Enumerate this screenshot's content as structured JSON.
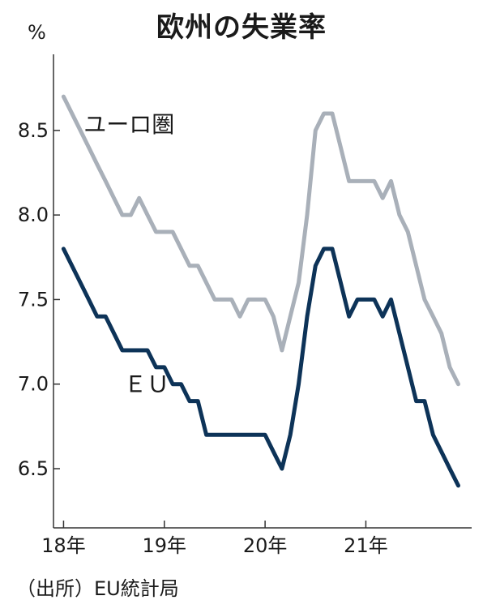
{
  "chart_data": {
    "type": "line",
    "title": "欧州の失業率",
    "ylabel": "%",
    "source": "（出所）EU統計局",
    "ylim": [
      6.15,
      8.95
    ],
    "yticks": [
      6.5,
      7.0,
      7.5,
      8.0,
      8.5
    ],
    "ytick_labels": [
      "6.5",
      "7.0",
      "7.5",
      "8.0",
      "8.5"
    ],
    "xlim": [
      2017.9,
      2022.05
    ],
    "xticks": [
      2018,
      2019,
      2020,
      2021
    ],
    "xtick_labels": [
      "18年",
      "19年",
      "20年",
      "21年"
    ],
    "grid": false,
    "legend": "inline labels",
    "series": [
      {
        "name": "ユーロ圏",
        "color": "#a9b0b9",
        "x": [
          2018.0,
          2018.083,
          2018.167,
          2018.25,
          2018.333,
          2018.417,
          2018.5,
          2018.583,
          2018.667,
          2018.75,
          2018.833,
          2018.917,
          2019.0,
          2019.083,
          2019.167,
          2019.25,
          2019.333,
          2019.417,
          2019.5,
          2019.583,
          2019.667,
          2019.75,
          2019.833,
          2019.917,
          2020.0,
          2020.083,
          2020.167,
          2020.25,
          2020.333,
          2020.417,
          2020.5,
          2020.583,
          2020.667,
          2020.75,
          2020.833,
          2020.917,
          2021.0,
          2021.083,
          2021.167,
          2021.25,
          2021.333,
          2021.417,
          2021.5,
          2021.583,
          2021.667,
          2021.75,
          2021.833,
          2021.917
        ],
        "values": [
          8.7,
          8.6,
          8.5,
          8.4,
          8.3,
          8.2,
          8.1,
          8.0,
          8.0,
          8.1,
          8.0,
          7.9,
          7.9,
          7.9,
          7.8,
          7.7,
          7.7,
          7.6,
          7.5,
          7.5,
          7.5,
          7.4,
          7.5,
          7.5,
          7.5,
          7.4,
          7.2,
          7.4,
          7.6,
          8.0,
          8.5,
          8.6,
          8.6,
          8.4,
          8.2,
          8.2,
          8.2,
          8.2,
          8.1,
          8.2,
          8.0,
          7.9,
          7.7,
          7.5,
          7.4,
          7.3,
          7.1,
          7.0
        ]
      },
      {
        "name": "ＥＵ",
        "color": "#0d3358",
        "x": [
          2018.0,
          2018.083,
          2018.167,
          2018.25,
          2018.333,
          2018.417,
          2018.5,
          2018.583,
          2018.667,
          2018.75,
          2018.833,
          2018.917,
          2019.0,
          2019.083,
          2019.167,
          2019.25,
          2019.333,
          2019.417,
          2019.5,
          2019.583,
          2019.667,
          2019.75,
          2019.833,
          2019.917,
          2020.0,
          2020.083,
          2020.167,
          2020.25,
          2020.333,
          2020.417,
          2020.5,
          2020.583,
          2020.667,
          2020.75,
          2020.833,
          2020.917,
          2021.0,
          2021.083,
          2021.167,
          2021.25,
          2021.333,
          2021.417,
          2021.5,
          2021.583,
          2021.667,
          2021.75,
          2021.833,
          2021.917
        ],
        "values": [
          7.8,
          7.7,
          7.6,
          7.5,
          7.4,
          7.4,
          7.3,
          7.2,
          7.2,
          7.2,
          7.2,
          7.1,
          7.1,
          7.0,
          7.0,
          6.9,
          6.9,
          6.7,
          6.7,
          6.7,
          6.7,
          6.7,
          6.7,
          6.7,
          6.7,
          6.6,
          6.5,
          6.7,
          7.0,
          7.4,
          7.7,
          7.8,
          7.8,
          7.6,
          7.4,
          7.5,
          7.5,
          7.5,
          7.4,
          7.5,
          7.3,
          7.1,
          6.9,
          6.9,
          6.7,
          6.6,
          6.5,
          6.4
        ]
      }
    ]
  }
}
